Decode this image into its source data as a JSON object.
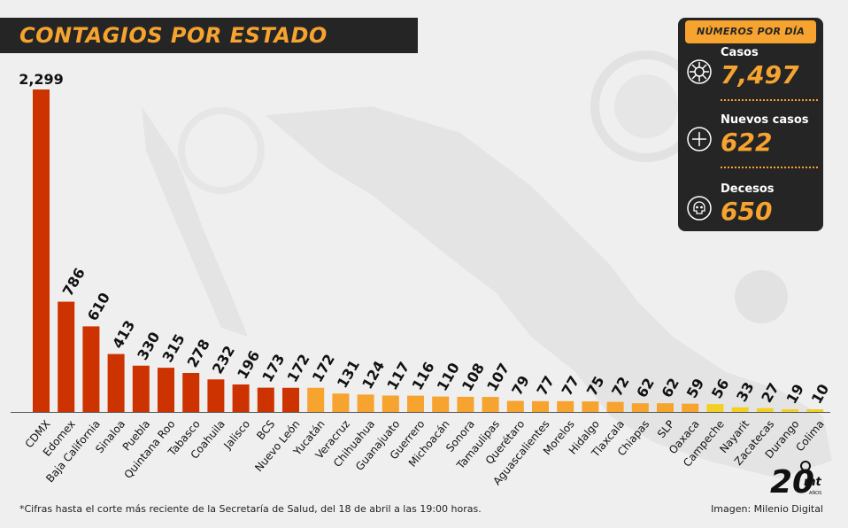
{
  "title": "CONTAGIOS POR ESTADO",
  "panel": {
    "header": "NÚMEROS POR DÍA",
    "stats": [
      {
        "label": "Casos",
        "value": "7,497",
        "icon": "virus-icon"
      },
      {
        "label": "Nuevos casos",
        "value": "622",
        "icon": "plus-circle-icon"
      },
      {
        "label": "Decesos",
        "value": "650",
        "icon": "skull-icon"
      }
    ]
  },
  "footnote": "*Cifras hasta el corte más reciente de la Secretaría de Salud, del 18 de abril a las 19:00 horas.",
  "credit": "Imagen: Milenio Digital",
  "logo_text": "20 mt AÑOS",
  "colors": {
    "red": "#cc3300",
    "orange": "#f6a330",
    "yellow": "#f2cf23",
    "dark": "#252525",
    "background": "#efefef"
  },
  "chart_data": {
    "type": "bar",
    "categories": [
      "CDMX",
      "Edomex",
      "Baja California",
      "Sinaloa",
      "Puebla",
      "Quintana Roo",
      "Tabasco",
      "Coahuila",
      "Jalisco",
      "BCS",
      "Nuevo León",
      "Yucatán",
      "Veracruz",
      "Chihuahua",
      "Guanajuato",
      "Guerrero",
      "Michoacán",
      "Sonora",
      "Tamaulipas",
      "Querétaro",
      "Aguascalientes",
      "Morelos",
      "Hidalgo",
      "Tlaxcala",
      "Chiapas",
      "SLP",
      "Oaxaca",
      "Campeche",
      "Nayarit",
      "Zacatecas",
      "Durango",
      "Colima"
    ],
    "values": [
      2299,
      786,
      610,
      413,
      330,
      315,
      278,
      232,
      196,
      173,
      172,
      172,
      131,
      124,
      117,
      116,
      110,
      108,
      107,
      79,
      77,
      77,
      75,
      72,
      62,
      62,
      59,
      56,
      33,
      27,
      19,
      10
    ],
    "value_labels": [
      "2,299",
      "786",
      "610",
      "413",
      "330",
      "315",
      "278",
      "232",
      "196",
      "173",
      "172",
      "172",
      "131",
      "124",
      "117",
      "116",
      "110",
      "108",
      "107",
      "79",
      "77",
      "77",
      "75",
      "72",
      "62",
      "62",
      "59",
      "56",
      "33",
      "27",
      "19",
      "10"
    ],
    "bar_colors": [
      "#cc3300",
      "#cc3300",
      "#cc3300",
      "#cc3300",
      "#cc3300",
      "#cc3300",
      "#cc3300",
      "#cc3300",
      "#cc3300",
      "#cc3300",
      "#cc3300",
      "#f6a330",
      "#f6a330",
      "#f6a330",
      "#f6a330",
      "#f6a330",
      "#f6a330",
      "#f6a330",
      "#f6a330",
      "#f6a330",
      "#f6a330",
      "#f6a330",
      "#f6a330",
      "#f6a330",
      "#f6a330",
      "#f6a330",
      "#f6a330",
      "#f2cf23",
      "#f2cf23",
      "#f2cf23",
      "#f2cf23",
      "#f2cf23"
    ],
    "title": "CONTAGIOS POR ESTADO",
    "xlabel": "",
    "ylabel": "",
    "ylim": [
      0,
      2299
    ],
    "grid": false
  }
}
